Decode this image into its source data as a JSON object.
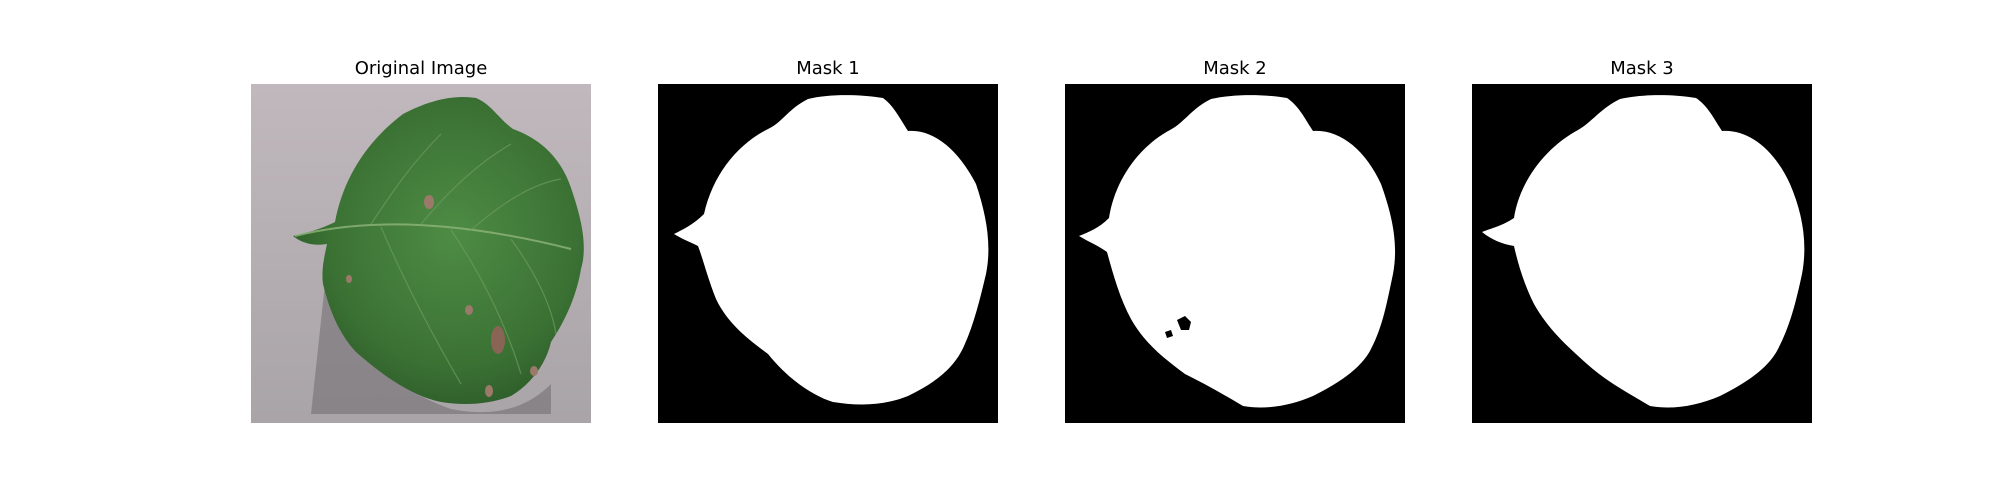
{
  "figure": {
    "panels": [
      {
        "title": "Original Image",
        "kind": "photo"
      },
      {
        "title": "Mask 1",
        "kind": "mask"
      },
      {
        "title": "Mask 2",
        "kind": "mask"
      },
      {
        "title": "Mask 3",
        "kind": "mask"
      }
    ]
  },
  "colors": {
    "background": "#ffffff",
    "mask_background": "#000000",
    "mask_foreground": "#ffffff",
    "photo_background": "#b8b0b4",
    "leaf_green": "#3f7a3a"
  }
}
